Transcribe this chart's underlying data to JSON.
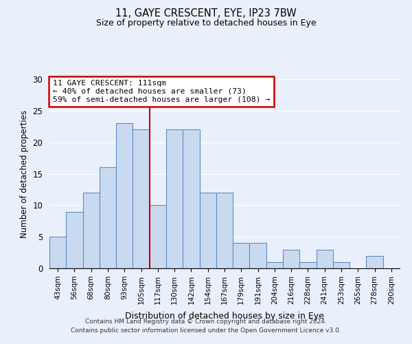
{
  "title": "11, GAYE CRESCENT, EYE, IP23 7BW",
  "subtitle": "Size of property relative to detached houses in Eye",
  "xlabel": "Distribution of detached houses by size in Eye",
  "ylabel": "Number of detached properties",
  "bar_color": "#c9d9f0",
  "bar_edge_color": "#5b8ec4",
  "background_color": "#eaf0fb",
  "grid_color": "#ffffff",
  "categories": [
    "43sqm",
    "56sqm",
    "68sqm",
    "80sqm",
    "93sqm",
    "105sqm",
    "117sqm",
    "130sqm",
    "142sqm",
    "154sqm",
    "167sqm",
    "179sqm",
    "191sqm",
    "204sqm",
    "216sqm",
    "228sqm",
    "241sqm",
    "253sqm",
    "265sqm",
    "278sqm",
    "290sqm"
  ],
  "values": [
    5,
    9,
    12,
    16,
    23,
    22,
    10,
    22,
    22,
    12,
    12,
    4,
    4,
    1,
    3,
    1,
    3,
    1,
    0,
    2,
    0
  ],
  "ylim": [
    0,
    30
  ],
  "yticks": [
    0,
    5,
    10,
    15,
    20,
    25,
    30
  ],
  "red_line_x": 5.5,
  "annotation_title": "11 GAYE CRESCENT: 111sqm",
  "annotation_line1": "← 40% of detached houses are smaller (73)",
  "annotation_line2": "59% of semi-detached houses are larger (108) →",
  "annotation_box_color": "#ffffff",
  "annotation_box_edge": "#cc0000",
  "red_line_color": "#cc0000",
  "footer1": "Contains HM Land Registry data © Crown copyright and database right 2024.",
  "footer2": "Contains public sector information licensed under the Open Government Licence v3.0."
}
